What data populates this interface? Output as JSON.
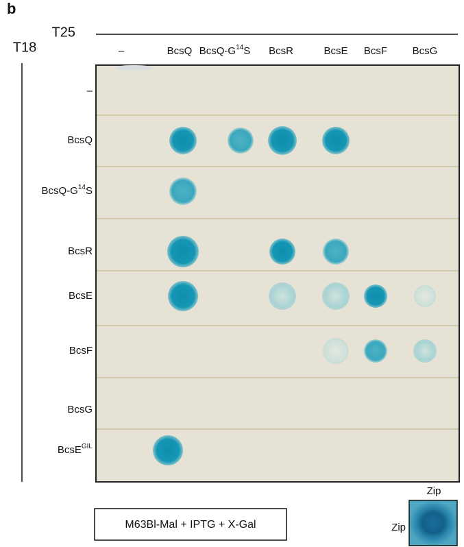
{
  "figure": {
    "panel_label": "b",
    "column_axis_label": "T25",
    "row_axis_label": "T18",
    "columns": [
      "–",
      "BcsQ",
      {
        "base": "BcsQ-G",
        "sup": "14",
        "end": "S"
      },
      "BcsR",
      "BcsE",
      "BcsF",
      "BcsG"
    ],
    "rows": [
      "–",
      "BcsQ",
      {
        "base": "BcsQ-G",
        "sup": "14",
        "end": "S"
      },
      "BcsR",
      "BcsE",
      "BcsF",
      "BcsG",
      {
        "base": "BcsE",
        "sup": "GIL"
      }
    ],
    "medium": "M63Bl-Mal + IPTG + X-Gal",
    "control": {
      "column_label": "Zip",
      "row_label": "Zip"
    }
  }
}
